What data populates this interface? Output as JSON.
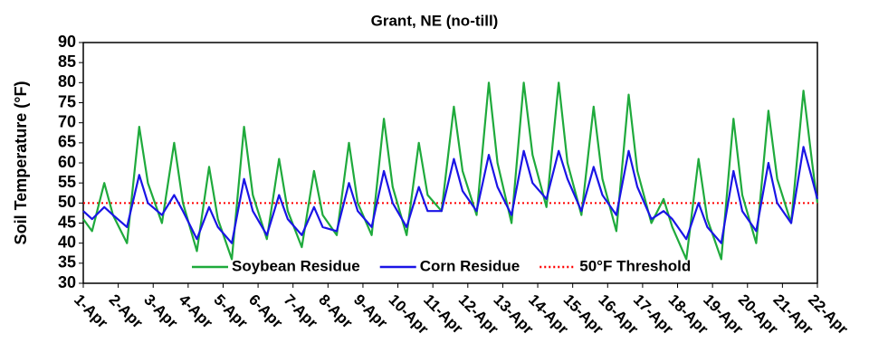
{
  "chart_data": {
    "type": "line",
    "title": "Grant, NE (no-till)",
    "y_label": "Soil Temperature (°F)",
    "x": [
      1.0,
      1.25,
      1.6,
      1.85,
      2.25,
      2.6,
      2.85,
      3.25,
      3.6,
      3.85,
      4.25,
      4.6,
      4.85,
      5.25,
      5.6,
      5.85,
      6.25,
      6.6,
      6.85,
      7.25,
      7.6,
      7.85,
      8.25,
      8.6,
      8.85,
      9.25,
      9.6,
      9.85,
      10.25,
      10.6,
      10.85,
      11.25,
      11.6,
      11.85,
      12.25,
      12.6,
      12.85,
      13.25,
      13.6,
      13.85,
      14.25,
      14.6,
      14.85,
      15.25,
      15.6,
      15.85,
      16.25,
      16.6,
      16.85,
      17.25,
      17.6,
      17.85,
      18.25,
      18.6,
      18.85,
      19.25,
      19.6,
      19.85,
      20.25,
      20.6,
      20.85,
      21.25,
      21.6,
      21.85,
      22.0
    ],
    "series": [
      {
        "name": "Soybean Residue",
        "color": "#1faa3c",
        "values": [
          46,
          43,
          55,
          47,
          40,
          69,
          55,
          45,
          65,
          50,
          38,
          59,
          46,
          36,
          69,
          52,
          41,
          61,
          48,
          39,
          58,
          47,
          42,
          65,
          50,
          42,
          71,
          54,
          42,
          65,
          52,
          48,
          74,
          58,
          47,
          80,
          60,
          45,
          80,
          62,
          49,
          80,
          60,
          47,
          74,
          56,
          43,
          77,
          58,
          45,
          51,
          44,
          36,
          61,
          46,
          36,
          71,
          52,
          40,
          73,
          56,
          45,
          78,
          60,
          50
        ]
      },
      {
        "name": "Corn Residue",
        "color": "#1a14e6",
        "values": [
          48,
          46,
          49,
          47,
          44,
          57,
          50,
          47,
          52,
          48,
          41,
          49,
          44,
          40,
          56,
          48,
          42,
          52,
          46,
          42,
          49,
          44,
          43,
          55,
          48,
          44,
          58,
          50,
          44,
          54,
          48,
          48,
          61,
          53,
          48,
          62,
          54,
          47,
          63,
          55,
          51,
          63,
          56,
          48,
          59,
          52,
          47,
          63,
          54,
          46,
          48,
          46,
          41,
          50,
          44,
          40,
          58,
          48,
          43,
          60,
          50,
          45,
          64,
          56,
          51
        ]
      }
    ],
    "hlines": [
      {
        "name": "50°F Threshold",
        "value": 50,
        "color": "#ff0000"
      }
    ],
    "xlim": [
      1,
      22
    ],
    "xticks": [
      {
        "value": 1,
        "label": "1-Apr"
      },
      {
        "value": 2,
        "label": "2-Apr"
      },
      {
        "value": 3,
        "label": "3-Apr"
      },
      {
        "value": 4,
        "label": "4-Apr"
      },
      {
        "value": 5,
        "label": "5-Apr"
      },
      {
        "value": 6,
        "label": "6-Apr"
      },
      {
        "value": 7,
        "label": "7-Apr"
      },
      {
        "value": 8,
        "label": "8-Apr"
      },
      {
        "value": 9,
        "label": "9-Apr"
      },
      {
        "value": 10,
        "label": "10-Apr"
      },
      {
        "value": 11,
        "label": "11-Apr"
      },
      {
        "value": 12,
        "label": "12-Apr"
      },
      {
        "value": 13,
        "label": "13-Apr"
      },
      {
        "value": 14,
        "label": "14-Apr"
      },
      {
        "value": 15,
        "label": "15-Apr"
      },
      {
        "value": 16,
        "label": "16-Apr"
      },
      {
        "value": 17,
        "label": "17-Apr"
      },
      {
        "value": 18,
        "label": "18-Apr"
      },
      {
        "value": 19,
        "label": "19-Apr"
      },
      {
        "value": 20,
        "label": "20-Apr"
      },
      {
        "value": 21,
        "label": "21-Apr"
      },
      {
        "value": 22,
        "label": "22-Apr"
      }
    ],
    "ylim": [
      30,
      90
    ],
    "yticks": [
      30,
      35,
      40,
      45,
      50,
      55,
      60,
      65,
      70,
      75,
      80,
      85,
      90
    ],
    "legend": "lower center",
    "grid": false
  }
}
